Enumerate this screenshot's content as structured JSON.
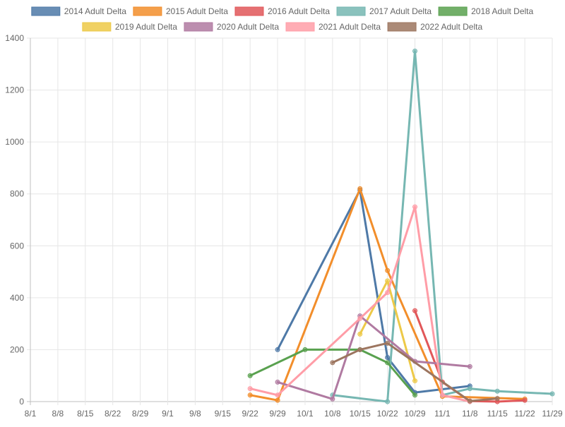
{
  "chart_data": {
    "type": "line",
    "title": "",
    "xlabel": "",
    "ylabel": "",
    "x": [
      "8/1",
      "8/8",
      "8/15",
      "8/22",
      "8/29",
      "9/1",
      "9/8",
      "9/15",
      "9/22",
      "9/29",
      "10/1",
      "10/8",
      "10/15",
      "10/22",
      "10/29",
      "11/1",
      "11/8",
      "11/15",
      "11/22",
      "11/29"
    ],
    "ylim": [
      0,
      1400
    ],
    "yticks": [
      0,
      200,
      400,
      600,
      800,
      1000,
      1200,
      1400
    ],
    "grid": true,
    "legend_position": "top",
    "series": [
      {
        "name": "2014 Adult Delta",
        "color": "#4e79a7",
        "points": [
          [
            "9/29",
            200
          ],
          [
            "10/15",
            815
          ],
          [
            "10/22",
            170
          ],
          [
            "10/29",
            35
          ],
          [
            "11/8",
            60
          ]
        ]
      },
      {
        "name": "2015 Adult Delta",
        "color": "#f28e2b",
        "points": [
          [
            "9/22",
            25
          ],
          [
            "9/29",
            5
          ],
          [
            "10/15",
            820
          ],
          [
            "10/22",
            505
          ],
          [
            "11/1",
            20
          ],
          [
            "11/22",
            10
          ]
        ]
      },
      {
        "name": "2016 Adult Delta",
        "color": "#e15759",
        "points": [
          [
            "10/29",
            350
          ],
          [
            "11/1",
            75
          ],
          [
            "11/8",
            2
          ],
          [
            "11/15",
            0
          ],
          [
            "11/22",
            5
          ]
        ]
      },
      {
        "name": "2017 Adult Delta",
        "color": "#76b7b2",
        "points": [
          [
            "10/8",
            25
          ],
          [
            "10/22",
            0
          ],
          [
            "10/29",
            1350
          ],
          [
            "11/1",
            25
          ],
          [
            "11/8",
            50
          ],
          [
            "11/15",
            40
          ],
          [
            "11/29",
            30
          ]
        ]
      },
      {
        "name": "2018 Adult Delta",
        "color": "#59a14f",
        "points": [
          [
            "9/22",
            100
          ],
          [
            "10/1",
            200
          ],
          [
            "10/15",
            200
          ],
          [
            "10/22",
            150
          ],
          [
            "10/29",
            25
          ]
        ]
      },
      {
        "name": "2019 Adult Delta",
        "color": "#edc948",
        "points": [
          [
            "10/15",
            260
          ],
          [
            "10/22",
            465
          ],
          [
            "10/29",
            80
          ]
        ]
      },
      {
        "name": "2020 Adult Delta",
        "color": "#b07aa1",
        "points": [
          [
            "9/29",
            75
          ],
          [
            "10/8",
            10
          ],
          [
            "10/15",
            330
          ],
          [
            "10/29",
            155
          ],
          [
            "11/8",
            135
          ]
        ]
      },
      {
        "name": "2021 Adult Delta",
        "color": "#ff9da7",
        "points": [
          [
            "9/22",
            50
          ],
          [
            "9/29",
            25
          ],
          [
            "10/15",
            320
          ],
          [
            "10/22",
            420
          ],
          [
            "10/29",
            750
          ],
          [
            "11/1",
            25
          ],
          [
            "11/8",
            0
          ]
        ]
      },
      {
        "name": "2022 Adult Delta",
        "color": "#9c755f",
        "points": [
          [
            "10/8",
            150
          ],
          [
            "10/15",
            200
          ],
          [
            "10/22",
            225
          ],
          [
            "11/8",
            2
          ],
          [
            "11/15",
            12
          ]
        ]
      }
    ]
  }
}
